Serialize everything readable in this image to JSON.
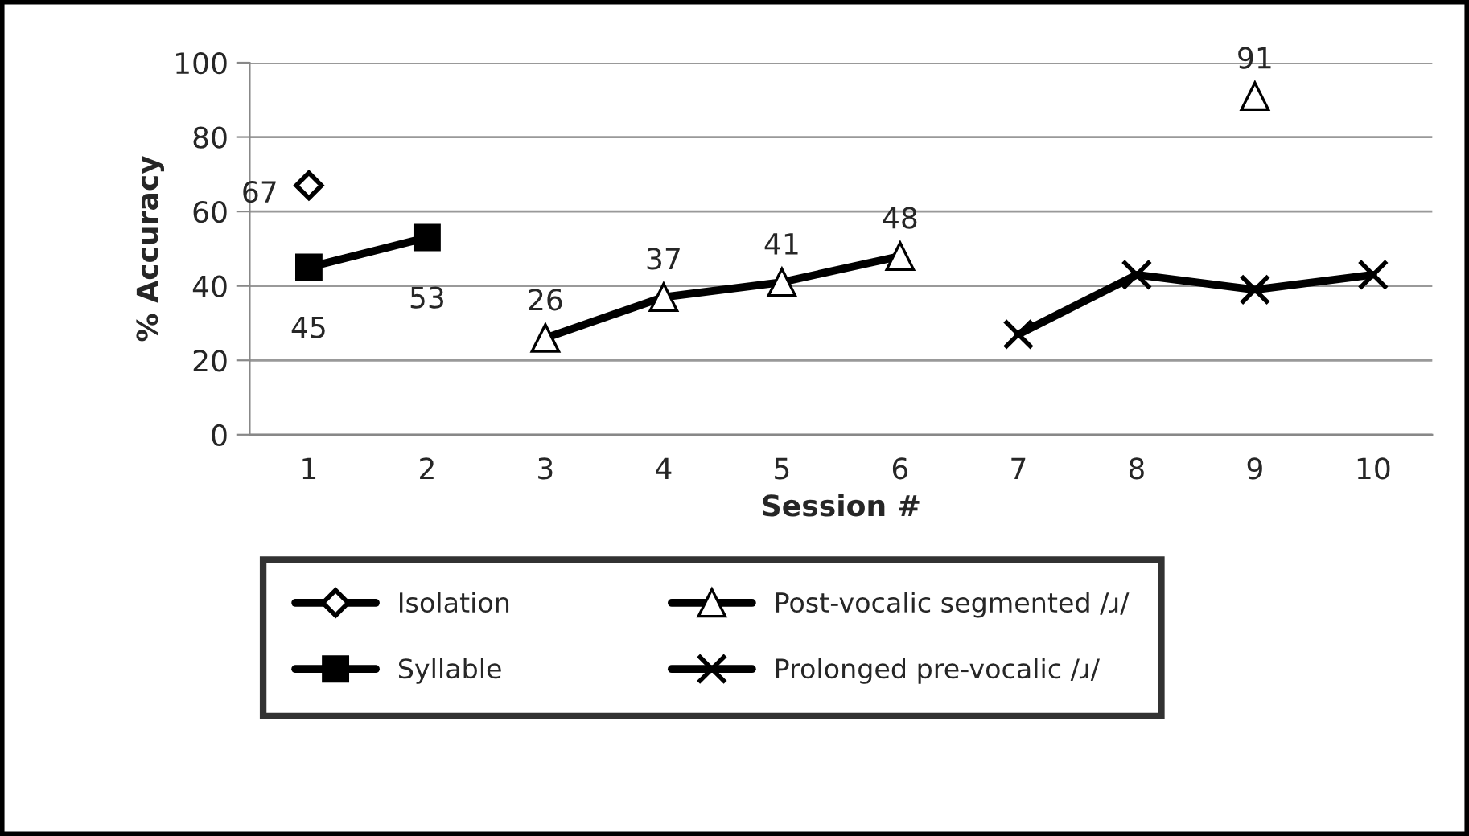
{
  "chart_data": {
    "type": "line",
    "xlabel": "Session #",
    "ylabel": "% Accuracy",
    "categories": [
      "1",
      "2",
      "3",
      "4",
      "5",
      "6",
      "7",
      "8",
      "9",
      "10"
    ],
    "ylim": [
      0,
      100
    ],
    "yticks": [
      0,
      20,
      40,
      60,
      80,
      100
    ],
    "grid": "y",
    "legend": "bottom",
    "series": [
      {
        "name": "Isolation",
        "color": "#000000",
        "marker": "diamond",
        "values": [
          67,
          null,
          null,
          null,
          null,
          null,
          null,
          null,
          null,
          null
        ],
        "value_labels": [
          "67",
          null,
          null,
          null,
          null,
          null,
          null,
          null,
          null,
          null
        ]
      },
      {
        "name": "Syllable",
        "color": "#000000",
        "marker": "square",
        "values": [
          45,
          53,
          null,
          null,
          null,
          null,
          null,
          null,
          null,
          null
        ],
        "value_labels": [
          "45",
          "53",
          null,
          null,
          null,
          null,
          null,
          null,
          null,
          null
        ]
      },
      {
        "name": "Post-vocalic segmented /ɹ/",
        "color": "#000000",
        "marker": "triangle",
        "values": [
          null,
          null,
          26,
          37,
          41,
          48,
          null,
          null,
          91,
          null
        ],
        "value_labels": [
          null,
          null,
          "26",
          "37",
          "41",
          "48",
          null,
          null,
          "91",
          null
        ]
      },
      {
        "name": "Prolonged pre-vocalic /ɹ/",
        "color": "#000000",
        "marker": "cross",
        "values": [
          null,
          null,
          null,
          null,
          null,
          null,
          27,
          43,
          39,
          43
        ]
      }
    ]
  }
}
